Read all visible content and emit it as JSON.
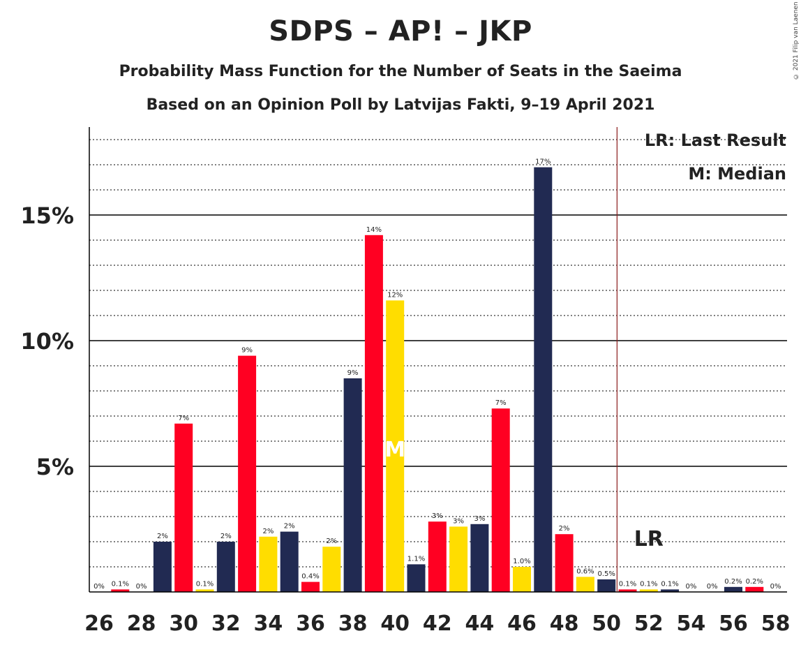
{
  "title": "SDPS – AP! – JKP",
  "subtitle": "Probability Mass Function for the Number of Seats in the Saeima",
  "subtitle2": "Based on an Opinion Poll by Latvijas Fakti, 9–19 April 2021",
  "copyright": "© 2021 Filip van Laenen",
  "legend": {
    "lr": "LR: Last Result",
    "m": "M: Median"
  },
  "colors": {
    "navy": "#212a52",
    "red": "#ff0022",
    "yellow": "#ffdd00",
    "lr_line": "#8b1a1a",
    "grid": "#000000"
  },
  "chart_data": {
    "type": "bar",
    "x": [
      26,
      27,
      28,
      29,
      30,
      31,
      32,
      33,
      34,
      35,
      36,
      37,
      38,
      39,
      40,
      41,
      42,
      43,
      44,
      45,
      46,
      47,
      48,
      49,
      50,
      51,
      52,
      53,
      54,
      55,
      56,
      57,
      58
    ],
    "values": [
      0,
      0.1,
      0,
      2,
      6.7,
      0.1,
      2,
      9.4,
      2.2,
      2.4,
      0.4,
      1.8,
      8.5,
      14.2,
      11.6,
      1.1,
      2.8,
      2.6,
      2.7,
      7.3,
      1.0,
      16.9,
      2.3,
      0.6,
      0.5,
      0.1,
      0.1,
      0.1,
      0,
      0,
      0.2,
      0.2,
      0
    ],
    "data_labels": [
      "0%",
      "0.1%",
      "0%",
      "2%",
      "7%",
      "0.1%",
      "2%",
      "9%",
      "2%",
      "2%",
      "0.4%",
      "2%",
      "9%",
      "14%",
      "12%",
      "1.1%",
      "3%",
      "3%",
      "3%",
      "7%",
      "1.0%",
      "17%",
      "2%",
      "0.6%",
      "0.5%",
      "0.1%",
      "0.1%",
      "0.1%",
      "0%",
      "0%",
      "0.2%",
      "0.2%",
      "0%"
    ],
    "bar_colors": [
      "navy",
      "red",
      "yellow",
      "navy",
      "red",
      "yellow",
      "navy",
      "red",
      "yellow",
      "navy",
      "red",
      "yellow",
      "navy",
      "red",
      "yellow",
      "navy",
      "red",
      "yellow",
      "navy",
      "red",
      "yellow",
      "navy",
      "red",
      "yellow",
      "navy",
      "red",
      "yellow",
      "navy",
      "red",
      "yellow",
      "navy",
      "red",
      "yellow"
    ],
    "x_tick_labels": [
      "26",
      "28",
      "30",
      "32",
      "34",
      "36",
      "38",
      "40",
      "42",
      "44",
      "46",
      "48",
      "50",
      "52",
      "54",
      "56",
      "58"
    ],
    "y_ticks": [
      {
        "value": 5,
        "label": "5%"
      },
      {
        "value": 10,
        "label": "10%"
      },
      {
        "value": 15,
        "label": "15%"
      }
    ],
    "ylim": [
      0,
      18.5
    ],
    "median": 40,
    "median_label": "M",
    "last_result": 50.5,
    "last_result_label_seat": 52,
    "last_result_label": "LR",
    "grid": true,
    "legend_position": "top-right"
  }
}
